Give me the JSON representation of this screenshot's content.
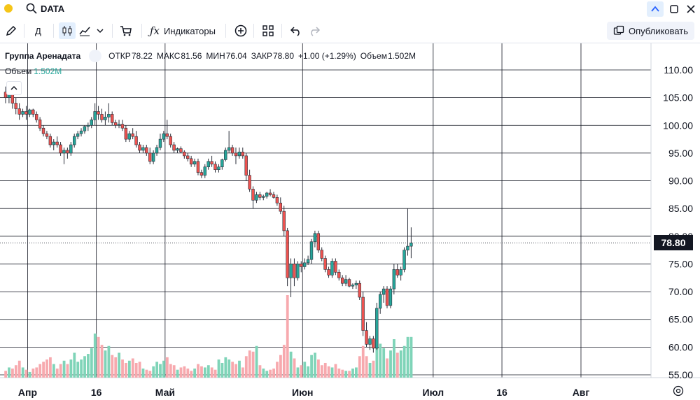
{
  "header": {
    "symbol": "DATA"
  },
  "toolbar": {
    "interval": "Д",
    "indicators": "Индикаторы",
    "publish": "Опубликовать"
  },
  "legend": {
    "name": "Группа Аренадата",
    "open_label": "ОТКР",
    "open": "78.22",
    "high_label": "МАКС",
    "high": "81.56",
    "low_label": "МИН",
    "low": "76.04",
    "close_label": "ЗАКР",
    "close": "78.80",
    "change": "+1.00 (+1.29%)",
    "volume_label": "Объем",
    "volume": "1.502M"
  },
  "vol_legend": {
    "label": "Объем",
    "value": "1.502M"
  },
  "last_price": "78.80",
  "colors": {
    "up": "#26a69a",
    "down": "#ef5350",
    "vol_up": "#7fd4b8",
    "vol_down": "#f7a9ae"
  },
  "chart_data": {
    "type": "candlestick",
    "ylim": [
      54.5,
      111
    ],
    "y_ticks": [
      "110.00",
      "105.00",
      "100.00",
      "95.00",
      "90.00",
      "85.00",
      "80.00",
      "75.00",
      "70.00",
      "65.00",
      "60.00",
      "55.00"
    ],
    "x_ticks": [
      {
        "label": "Апр",
        "index": 6
      },
      {
        "label": "16",
        "index": 26
      },
      {
        "label": "Май",
        "index": 46
      },
      {
        "label": "Июн",
        "index": 86
      },
      {
        "label": "Июл",
        "index": 124
      },
      {
        "label": "16",
        "index": 144
      },
      {
        "label": "Авг",
        "index": 167
      }
    ],
    "candles": [
      [
        106,
        107,
        104,
        105,
        0.6
      ],
      [
        105,
        106.5,
        104,
        105.5,
        0.9
      ],
      [
        105.5,
        107,
        103,
        104,
        0.8
      ],
      [
        104,
        105,
        102,
        103,
        1.1
      ],
      [
        103,
        104,
        101,
        102,
        1.5
      ],
      [
        102,
        103,
        101.5,
        102.5,
        0.9
      ],
      [
        102.5,
        103.5,
        101,
        102,
        0.7
      ],
      [
        102,
        103,
        101.5,
        102.8,
        0.5
      ],
      [
        102.8,
        103,
        101.5,
        102,
        0.8
      ],
      [
        102,
        102.5,
        100.5,
        101,
        0.9
      ],
      [
        101,
        101.5,
        99,
        99.5,
        1.2
      ],
      [
        99.5,
        100,
        98,
        98.5,
        1.4
      ],
      [
        98.5,
        99,
        97.5,
        98,
        1.6
      ],
      [
        98,
        98.5,
        96,
        96.5,
        1.8
      ],
      [
        96.5,
        97.5,
        95.5,
        97,
        1.2
      ],
      [
        97,
        98,
        96,
        96.5,
        0.8
      ],
      [
        96.5,
        97,
        94.5,
        95,
        1.2
      ],
      [
        95,
        96,
        93,
        95.5,
        1.5
      ],
      [
        95.5,
        96,
        94,
        95,
        1.2
      ],
      [
        95,
        97,
        94.5,
        96.5,
        1.6
      ],
      [
        96.5,
        98.5,
        96,
        98,
        2.2
      ],
      [
        98,
        99,
        97.5,
        98.5,
        1.4
      ],
      [
        98.5,
        99.5,
        98,
        99,
        1.6
      ],
      [
        99,
        100,
        98.5,
        99.8,
        1.9
      ],
      [
        99.8,
        100.5,
        99,
        100,
        2.1
      ],
      [
        100,
        101.5,
        99.5,
        101,
        2.6
      ],
      [
        101,
        104,
        100,
        102.5,
        3.9
      ],
      [
        102.5,
        103.5,
        101,
        102,
        3.6
      ],
      [
        102,
        103,
        100.5,
        101,
        2.9
      ],
      [
        101,
        102.5,
        100,
        101.5,
        2.4
      ],
      [
        101.5,
        104,
        100.5,
        102,
        2.8
      ],
      [
        102,
        102.5,
        100,
        100.5,
        2.0
      ],
      [
        100.5,
        101,
        99.5,
        100,
        1.8
      ],
      [
        100,
        101,
        99.5,
        100.2,
        2.2
      ],
      [
        100.2,
        101,
        99,
        99.5,
        1.6
      ],
      [
        99.5,
        100,
        97,
        97.5,
        1.3
      ],
      [
        97.5,
        99,
        97,
        98.5,
        1.5
      ],
      [
        98.5,
        99.5,
        97.5,
        98,
        1.7
      ],
      [
        98,
        99,
        96,
        96.5,
        1.3
      ],
      [
        96.5,
        97,
        95,
        95.5,
        1.4
      ],
      [
        95.5,
        96.5,
        95,
        96,
        0.8
      ],
      [
        96,
        96.5,
        94.5,
        95,
        0.7
      ],
      [
        95,
        96,
        93,
        93.5,
        0.6
      ],
      [
        93.5,
        95.5,
        93,
        95,
        1.0
      ],
      [
        95,
        96.5,
        94.5,
        96,
        1.4
      ],
      [
        96,
        98.5,
        95.5,
        97.5,
        1.2
      ],
      [
        97.5,
        99,
        97,
        98.5,
        1.5
      ],
      [
        98.5,
        101,
        97.5,
        98,
        1.8
      ],
      [
        98,
        98.5,
        96,
        96.5,
        1.2
      ],
      [
        96.5,
        97,
        95,
        95.5,
        1.1
      ],
      [
        95.5,
        96,
        95,
        95.8,
        0.7
      ],
      [
        95.8,
        96.2,
        95,
        95.2,
        0.9
      ],
      [
        95.2,
        95.5,
        94,
        94.5,
        1.0
      ],
      [
        94.5,
        95,
        93.5,
        94,
        0.8
      ],
      [
        94,
        94.5,
        92.5,
        93,
        0.6
      ],
      [
        93,
        94,
        92.5,
        93.5,
        0.8
      ],
      [
        93.5,
        94,
        91,
        91.5,
        1.2
      ],
      [
        91.5,
        92,
        90.5,
        91,
        1.0
      ],
      [
        91,
        93,
        90.5,
        92.5,
        0.9
      ],
      [
        92.5,
        94,
        92,
        93.5,
        1.1
      ],
      [
        93.5,
        94.5,
        92.5,
        93,
        0.9
      ],
      [
        93,
        93.5,
        91.5,
        92,
        0.7
      ],
      [
        92,
        93,
        91.5,
        92.5,
        1.6
      ],
      [
        92.5,
        94,
        92,
        93.8,
        1.3
      ],
      [
        93.8,
        96,
        93.5,
        95.5,
        1.8
      ],
      [
        95.5,
        99,
        95,
        96,
        1.6
      ],
      [
        96,
        96.5,
        94.5,
        95,
        1.4
      ],
      [
        95,
        96,
        93,
        94.5,
        1.2
      ],
      [
        94.5,
        96,
        94,
        95.2,
        1.5
      ],
      [
        95.2,
        96,
        94,
        94.5,
        0.9
      ],
      [
        94.5,
        95,
        90,
        91,
        1.9
      ],
      [
        91,
        92,
        88,
        88.5,
        2.4
      ],
      [
        88.5,
        89,
        85,
        86.5,
        2.3
      ],
      [
        86.5,
        88,
        86,
        87.5,
        2.8
      ],
      [
        87.5,
        88,
        86.5,
        87,
        1.1
      ],
      [
        87,
        87.5,
        86.5,
        87.2,
        0.8
      ],
      [
        87.2,
        88,
        86.8,
        87.8,
        0.6
      ],
      [
        87.8,
        88.5,
        87.2,
        87.5,
        0.7
      ],
      [
        87.5,
        88,
        86.8,
        87,
        0.8
      ],
      [
        87,
        87.5,
        85.5,
        86,
        1.4
      ],
      [
        86,
        87,
        84,
        84.5,
        2.0
      ],
      [
        84.5,
        85.5,
        80,
        81,
        2.9
      ],
      [
        81,
        81.5,
        71,
        72.5,
        7.3
      ],
      [
        72.5,
        76,
        69,
        75,
        2.3
      ],
      [
        75,
        76,
        71,
        72.5,
        1.7
      ],
      [
        72.5,
        75.5,
        72,
        75,
        0.9
      ],
      [
        75,
        75.5,
        73.5,
        74.5,
        1.1
      ],
      [
        74.5,
        76,
        74,
        75.2,
        1.4
      ],
      [
        75.2,
        76.5,
        74.8,
        75.8,
        1.0
      ],
      [
        75.8,
        79.5,
        75,
        79,
        2.0
      ],
      [
        79,
        81,
        78,
        80.5,
        2.2
      ],
      [
        80.5,
        81,
        77,
        77.5,
        1.6
      ],
      [
        77.5,
        78,
        75.5,
        76,
        1.1
      ],
      [
        76,
        76.5,
        73.5,
        74,
        1.3
      ],
      [
        74,
        74.5,
        72.5,
        73,
        1.0
      ],
      [
        73,
        76,
        72.5,
        75.5,
        0.9
      ],
      [
        75.5,
        76,
        73,
        73.5,
        1.2
      ],
      [
        73.5,
        74,
        72,
        72.5,
        0.8
      ],
      [
        72.5,
        73,
        71,
        71.5,
        0.7
      ],
      [
        71.5,
        73,
        71,
        72.2,
        0.6
      ],
      [
        72.2,
        72.5,
        70.8,
        71,
        0.6
      ],
      [
        71,
        71.5,
        70.5,
        71.2,
        0.8
      ],
      [
        71.2,
        72,
        70.5,
        71.5,
        0.9
      ],
      [
        71.5,
        72,
        68.5,
        69,
        1.9
      ],
      [
        69,
        70,
        62,
        63,
        2.8
      ],
      [
        63,
        64.5,
        60,
        60.5,
        1.9
      ],
      [
        60.5,
        62,
        59.5,
        61.5,
        1.3
      ],
      [
        61.5,
        62,
        59,
        59.8,
        1.5
      ],
      [
        59.8,
        68,
        59.5,
        67,
        2.8
      ],
      [
        67,
        70,
        66,
        69.5,
        3.0
      ],
      [
        69.5,
        71,
        68,
        70.5,
        2.6
      ],
      [
        70.5,
        71,
        67,
        67.5,
        1.7
      ],
      [
        67.5,
        71,
        67,
        70.5,
        2.4
      ],
      [
        70.5,
        75,
        69.5,
        74,
        3.4
      ],
      [
        74,
        75,
        72.5,
        73,
        2.2
      ],
      [
        73,
        74.5,
        72,
        74,
        2.4
      ],
      [
        74,
        78,
        73.5,
        77.5,
        2.8
      ],
      [
        77.5,
        85,
        76.5,
        78.2,
        3.6
      ],
      [
        78.2,
        81.6,
        76.04,
        78.8,
        3.6
      ]
    ]
  }
}
